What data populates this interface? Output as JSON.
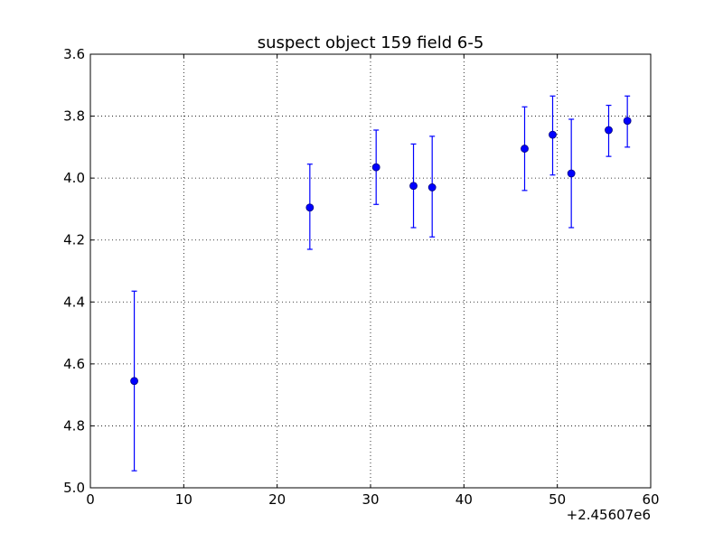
{
  "chart_data": {
    "type": "scatter",
    "title": "suspect object 159 field 6-5",
    "xlabel": "",
    "ylabel": "",
    "x_offset_label": "+2.45607e6",
    "xlim": [
      0,
      60
    ],
    "ylim": [
      3.6,
      5.0
    ],
    "y_inverted": true,
    "xticks": [
      0,
      10,
      20,
      30,
      40,
      50,
      60
    ],
    "xtick_labels": [
      "0",
      "10",
      "20",
      "30",
      "40",
      "50",
      "60"
    ],
    "yticks": [
      3.6,
      3.8,
      4.0,
      4.2,
      4.4,
      4.6,
      4.8,
      5.0
    ],
    "ytick_labels": [
      "3.6",
      "3.8",
      "4.0",
      "4.2",
      "4.4",
      "4.6",
      "4.8",
      "5.0"
    ],
    "grid": true,
    "series": [
      {
        "color": "#0000ff",
        "points": [
          {
            "x": 4.7,
            "y": 4.655,
            "err_low": 4.365,
            "err_high": 4.945
          },
          {
            "x": 23.5,
            "y": 4.095,
            "err_low": 3.955,
            "err_high": 4.23
          },
          {
            "x": 30.6,
            "y": 3.965,
            "err_low": 3.845,
            "err_high": 4.085
          },
          {
            "x": 34.6,
            "y": 4.025,
            "err_low": 3.89,
            "err_high": 4.16
          },
          {
            "x": 36.6,
            "y": 4.03,
            "err_low": 3.865,
            "err_high": 4.19
          },
          {
            "x": 46.5,
            "y": 3.905,
            "err_low": 3.77,
            "err_high": 4.04
          },
          {
            "x": 49.5,
            "y": 3.86,
            "err_low": 3.735,
            "err_high": 3.99
          },
          {
            "x": 51.5,
            "y": 3.985,
            "err_low": 3.81,
            "err_high": 4.16
          },
          {
            "x": 55.5,
            "y": 3.845,
            "err_low": 3.765,
            "err_high": 3.93
          },
          {
            "x": 57.5,
            "y": 3.815,
            "err_low": 3.735,
            "err_high": 3.9
          }
        ]
      }
    ]
  }
}
